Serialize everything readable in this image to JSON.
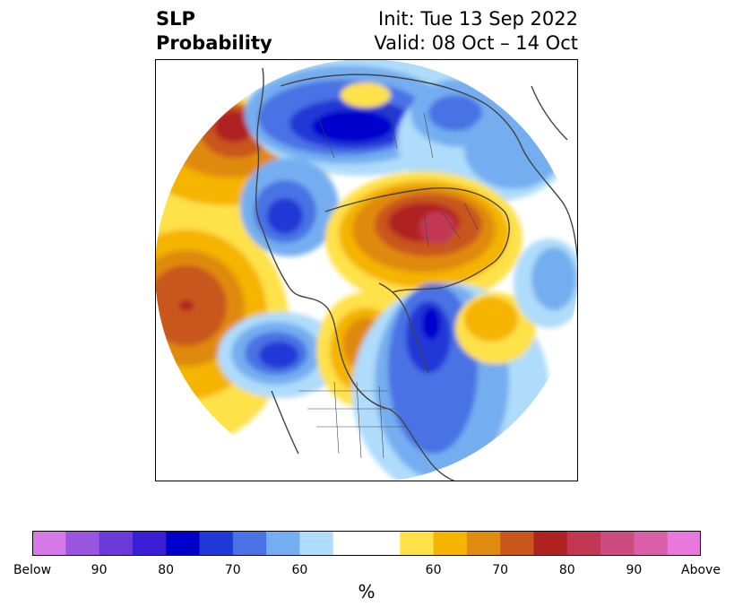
{
  "title": {
    "left_line1": "SLP",
    "left_line2": "Probability",
    "right_line1": "Init: Tue 13 Sep 2022",
    "right_line2": "Valid: 08 Oct – 14 Oct"
  },
  "colorbar": {
    "unit": "%",
    "colors": [
      "#d67ae8",
      "#9a55e0",
      "#6a3bd9",
      "#3b1fd6",
      "#0000cc",
      "#2238d6",
      "#4a72e4",
      "#74aef0",
      "#aedcfa",
      "#ffffff",
      "#ffffff",
      "#ffe14a",
      "#f4b400",
      "#e08a10",
      "#c9561a",
      "#b02222",
      "#c23752",
      "#cb4c80",
      "#db5ea8",
      "#e878dc"
    ],
    "tick_labels": [
      "Below",
      "90",
      "80",
      "70",
      "60",
      "60",
      "70",
      "80",
      "90",
      "Above"
    ]
  },
  "map": {
    "projection": "north-polar-stereographic",
    "regions": [
      {
        "name": "west-pacific-high",
        "category": "above",
        "level": 80
      },
      {
        "name": "siberia-low",
        "category": "below",
        "level": 80
      },
      {
        "name": "arctic-high",
        "category": "above",
        "level": 85
      },
      {
        "name": "north-atlantic-low",
        "category": "below",
        "level": 75
      },
      {
        "name": "canada-high",
        "category": "above",
        "level": 70
      },
      {
        "name": "east-pacific-low",
        "category": "below",
        "level": 70
      },
      {
        "name": "europe-low",
        "category": "below",
        "level": 60
      },
      {
        "name": "southwest-pacific-high",
        "category": "above",
        "level": 80
      }
    ]
  }
}
